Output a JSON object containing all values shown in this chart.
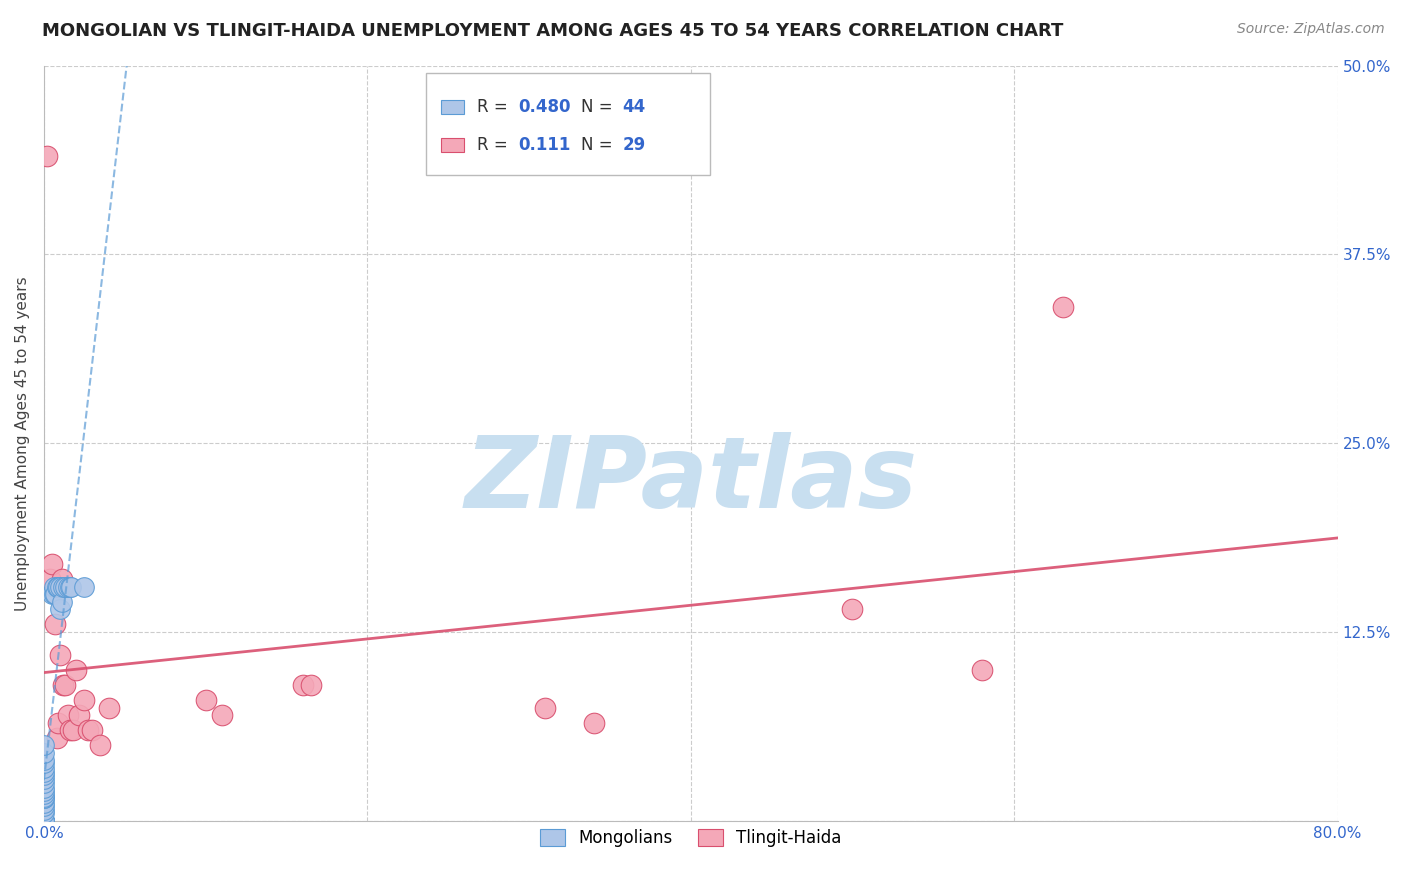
{
  "title": "MONGOLIAN VS TLINGIT-HAIDA UNEMPLOYMENT AMONG AGES 45 TO 54 YEARS CORRELATION CHART",
  "source": "Source: ZipAtlas.com",
  "ylabel": "Unemployment Among Ages 45 to 54 years",
  "xlim": [
    0.0,
    0.8
  ],
  "ylim": [
    0.0,
    0.5
  ],
  "xticks": [
    0.0,
    0.2,
    0.4,
    0.6,
    0.8
  ],
  "yticks": [
    0.0,
    0.125,
    0.25,
    0.375,
    0.5
  ],
  "grid_color": "#cccccc",
  "background_color": "#ffffff",
  "mongolians_color": "#aec6e8",
  "mongolians_edge": "#5b9bd5",
  "tlingit_color": "#f4a8b8",
  "tlingit_edge": "#d94f6e",
  "mongolians_R": 0.48,
  "mongolians_N": 44,
  "tlingit_R": 0.111,
  "tlingit_N": 29,
  "mongolians_x": [
    0.0,
    0.0,
    0.0,
    0.0,
    0.0,
    0.0,
    0.0,
    0.0,
    0.0,
    0.0,
    0.0,
    0.0,
    0.0,
    0.0,
    0.0,
    0.0,
    0.0,
    0.0,
    0.0,
    0.0,
    0.0,
    0.0,
    0.0,
    0.0,
    0.0,
    0.0,
    0.0,
    0.0,
    0.0,
    0.005,
    0.006,
    0.006,
    0.007,
    0.008,
    0.009,
    0.01,
    0.01,
    0.011,
    0.012,
    0.013,
    0.015,
    0.016,
    0.017,
    0.025
  ],
  "mongolians_y": [
    0.0,
    0.0,
    0.0,
    0.0,
    0.0,
    0.0,
    0.0,
    0.0,
    0.0,
    0.0,
    0.005,
    0.007,
    0.01,
    0.012,
    0.015,
    0.015,
    0.016,
    0.018,
    0.02,
    0.022,
    0.025,
    0.028,
    0.03,
    0.032,
    0.035,
    0.038,
    0.04,
    0.045,
    0.05,
    0.15,
    0.15,
    0.155,
    0.15,
    0.155,
    0.155,
    0.14,
    0.155,
    0.145,
    0.155,
    0.155,
    0.155,
    0.155,
    0.155,
    0.155
  ],
  "tlingit_x": [
    0.002,
    0.004,
    0.005,
    0.007,
    0.008,
    0.009,
    0.01,
    0.011,
    0.012,
    0.013,
    0.015,
    0.016,
    0.018,
    0.02,
    0.022,
    0.025,
    0.027,
    0.03,
    0.035,
    0.04,
    0.1,
    0.11,
    0.16,
    0.165,
    0.31,
    0.34,
    0.5,
    0.58,
    0.63
  ],
  "tlingit_y": [
    0.44,
    0.16,
    0.17,
    0.13,
    0.055,
    0.065,
    0.11,
    0.16,
    0.09,
    0.09,
    0.07,
    0.06,
    0.06,
    0.1,
    0.07,
    0.08,
    0.06,
    0.06,
    0.05,
    0.075,
    0.08,
    0.07,
    0.09,
    0.09,
    0.075,
    0.065,
    0.14,
    0.1,
    0.34
  ],
  "mongolians_line_color": "#5b9bd5",
  "tlingit_line_color": "#d94f6e",
  "watermark_color": "#c8dff0",
  "title_fontsize": 13,
  "axis_label_fontsize": 11,
  "tick_fontsize": 11,
  "legend_fontsize": 12,
  "source_fontsize": 10
}
